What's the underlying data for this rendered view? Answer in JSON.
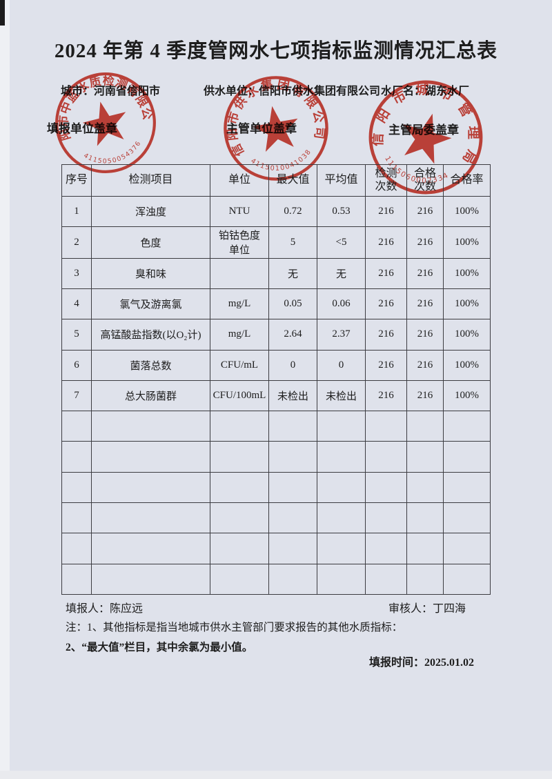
{
  "header": {
    "title": "2024 年第 4 季度管网水七项指标监测情况汇总表",
    "city": "城市：河南省信阳市",
    "supplier": "供水单位：信阳市供水集团有限公司",
    "plant": "水厂名：湖东水厂"
  },
  "stamps": {
    "labels": {
      "filler": "填报单位盖章",
      "supervisor": "主管单位盖章",
      "bureau": "主管局委盖章"
    },
    "seals": [
      {
        "ring_text": "信阳市中蓝水质检测有限公司",
        "serial": "4115050054376"
      },
      {
        "ring_text": "信阳市供水集团有限公司",
        "serial": "4115010041038"
      },
      {
        "ring_text": "信阳市城市管理局",
        "serial": "1115060002334"
      }
    ],
    "color": "#cd2a1c"
  },
  "table": {
    "columns": [
      "序号",
      "检测项目",
      "单位",
      "最大值",
      "平均值",
      "检测\n次数",
      "合格\n次数",
      "合格率"
    ],
    "rows": [
      [
        "1",
        "浑浊度",
        "NTU",
        "0.72",
        "0.53",
        "216",
        "216",
        "100%"
      ],
      [
        "2",
        "色度",
        "铂钴色度\n单位",
        "5",
        "<5",
        "216",
        "216",
        "100%"
      ],
      [
        "3",
        "臭和味",
        "",
        "无",
        "无",
        "216",
        "216",
        "100%"
      ],
      [
        "4",
        "氯气及游离氯",
        "mg/L",
        "0.05",
        "0.06",
        "216",
        "216",
        "100%"
      ],
      [
        "5",
        "高锰酸盐指数(以O₂计)",
        "mg/L",
        "2.64",
        "2.37",
        "216",
        "216",
        "100%"
      ],
      [
        "6",
        "菌落总数",
        "CFU/mL",
        "0",
        "0",
        "216",
        "216",
        "100%"
      ],
      [
        "7",
        "总大肠菌群",
        "CFU/100mL",
        "未检出",
        "未检出",
        "216",
        "216",
        "100%"
      ]
    ],
    "empty_row_count": 6
  },
  "footer": {
    "filler": "填报人：陈应远",
    "reviewer": "审核人：丁四海",
    "note1": "注：1、其他指标是指当地城市供水主管部门要求报告的其他水质指标：",
    "note2": "2、“最大值”栏目，其中余氯为最小值。",
    "date": "填报时间：2025.01.02"
  }
}
